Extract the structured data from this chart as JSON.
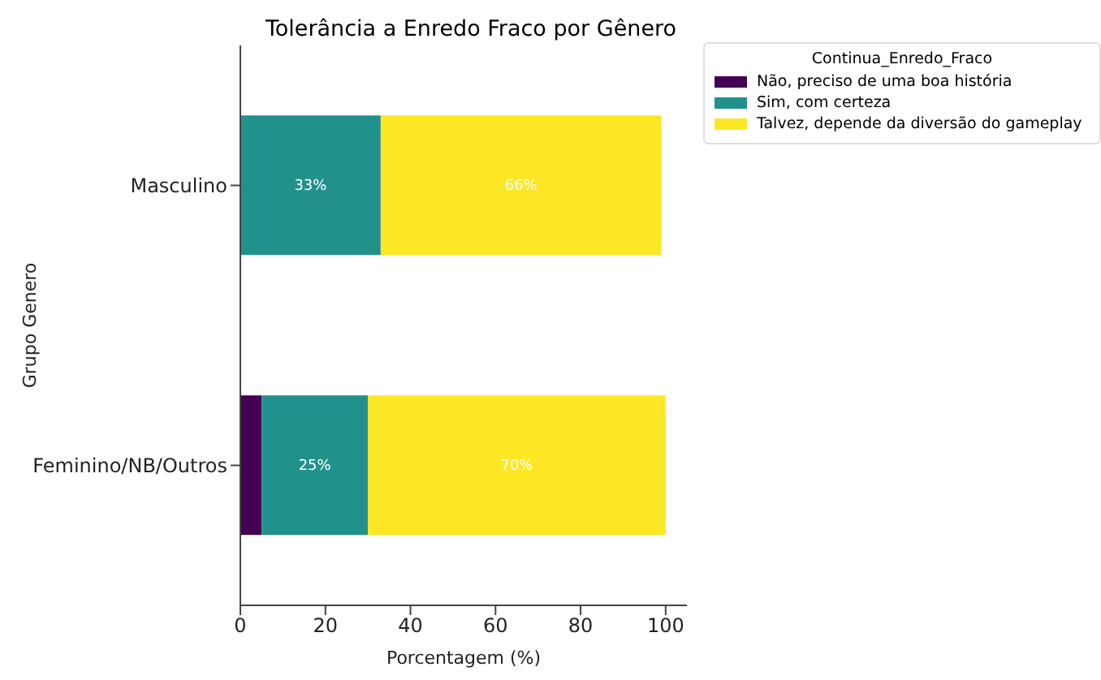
{
  "chart_data": {
    "type": "bar",
    "orientation": "horizontal",
    "stacked": true,
    "title": "Tolerância a Enredo Fraco por Gênero",
    "xlabel": "Porcentagem (%)",
    "ylabel": "Grupo Genero",
    "legend_title": "Continua_Enredo_Fraco",
    "legend": "right",
    "categories": [
      "Masculino",
      "Feminino/NB/Outros"
    ],
    "series": [
      {
        "name": "Não, preciso de uma boa história",
        "color": "#440154",
        "values": [
          0,
          5
        ],
        "value_labels": [
          null,
          null
        ]
      },
      {
        "name": "Sim, com certeza",
        "color": "#21918c",
        "values": [
          33,
          25
        ],
        "value_labels": [
          "33%",
          "25%"
        ]
      },
      {
        "name": "Talvez, depende da diversão do gameplay",
        "color": "#fde725",
        "values": [
          66,
          70
        ],
        "value_labels": [
          "66%",
          "70%"
        ]
      }
    ],
    "xlim": [
      0,
      105
    ],
    "xticks": [
      0,
      20,
      40,
      60,
      80,
      100
    ],
    "grid": false
  }
}
